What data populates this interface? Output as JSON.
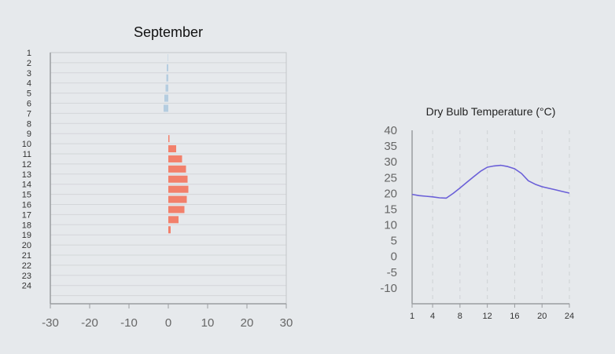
{
  "chart_data": [
    {
      "type": "bar",
      "orientation": "horizontal",
      "title": "September",
      "categories": [
        "1",
        "2",
        "3",
        "4",
        "5",
        "6",
        "7",
        "8",
        "9",
        "10",
        "11",
        "12",
        "13",
        "14",
        "15",
        "16",
        "17",
        "18",
        "19",
        "20",
        "21",
        "22",
        "23",
        "24"
      ],
      "series": [
        {
          "color": "#b5cde0",
          "values": [
            -0.1,
            -0.4,
            -0.5,
            -0.7,
            -1.0,
            -1.2,
            0,
            0,
            0,
            0,
            0,
            0,
            0,
            0,
            0,
            0,
            0,
            0,
            0,
            0,
            0,
            0,
            0,
            0
          ]
        },
        {
          "color": "#f2806b",
          "values": [
            0,
            0,
            0,
            0,
            0,
            0,
            0,
            0,
            0.3,
            2.0,
            3.5,
            4.5,
            4.9,
            5.1,
            4.7,
            4.1,
            2.6,
            0.6,
            0,
            0,
            0,
            0,
            0,
            0
          ]
        }
      ],
      "xlim": [
        -30,
        30
      ],
      "xticks": [
        "-30",
        "-20",
        "-10",
        "0",
        "10",
        "20",
        "30"
      ],
      "grid": true
    },
    {
      "type": "line",
      "title": "Dry Bulb Temperature (°C)",
      "x": [
        1,
        2,
        3,
        4,
        5,
        6,
        7,
        8,
        9,
        10,
        11,
        12,
        13,
        14,
        15,
        16,
        17,
        18,
        19,
        20,
        21,
        22,
        23,
        24
      ],
      "series": [
        {
          "color": "#6a5fd8",
          "values": [
            19.7,
            19.3,
            19.1,
            18.9,
            18.6,
            18.5,
            20.0,
            21.7,
            23.5,
            25.3,
            27.0,
            28.3,
            28.7,
            28.9,
            28.5,
            27.8,
            26.3,
            24.0,
            22.9,
            22.1,
            21.6,
            21.1,
            20.6,
            20.1
          ]
        }
      ],
      "ylim": [
        -15,
        40
      ],
      "yticks": [
        "40",
        "35",
        "30",
        "25",
        "20",
        "15",
        "10",
        "5",
        "0",
        "-5",
        "-10"
      ],
      "xticks": [
        "1",
        "4",
        "8",
        "12",
        "16",
        "20",
        "24"
      ],
      "grid": true
    }
  ]
}
